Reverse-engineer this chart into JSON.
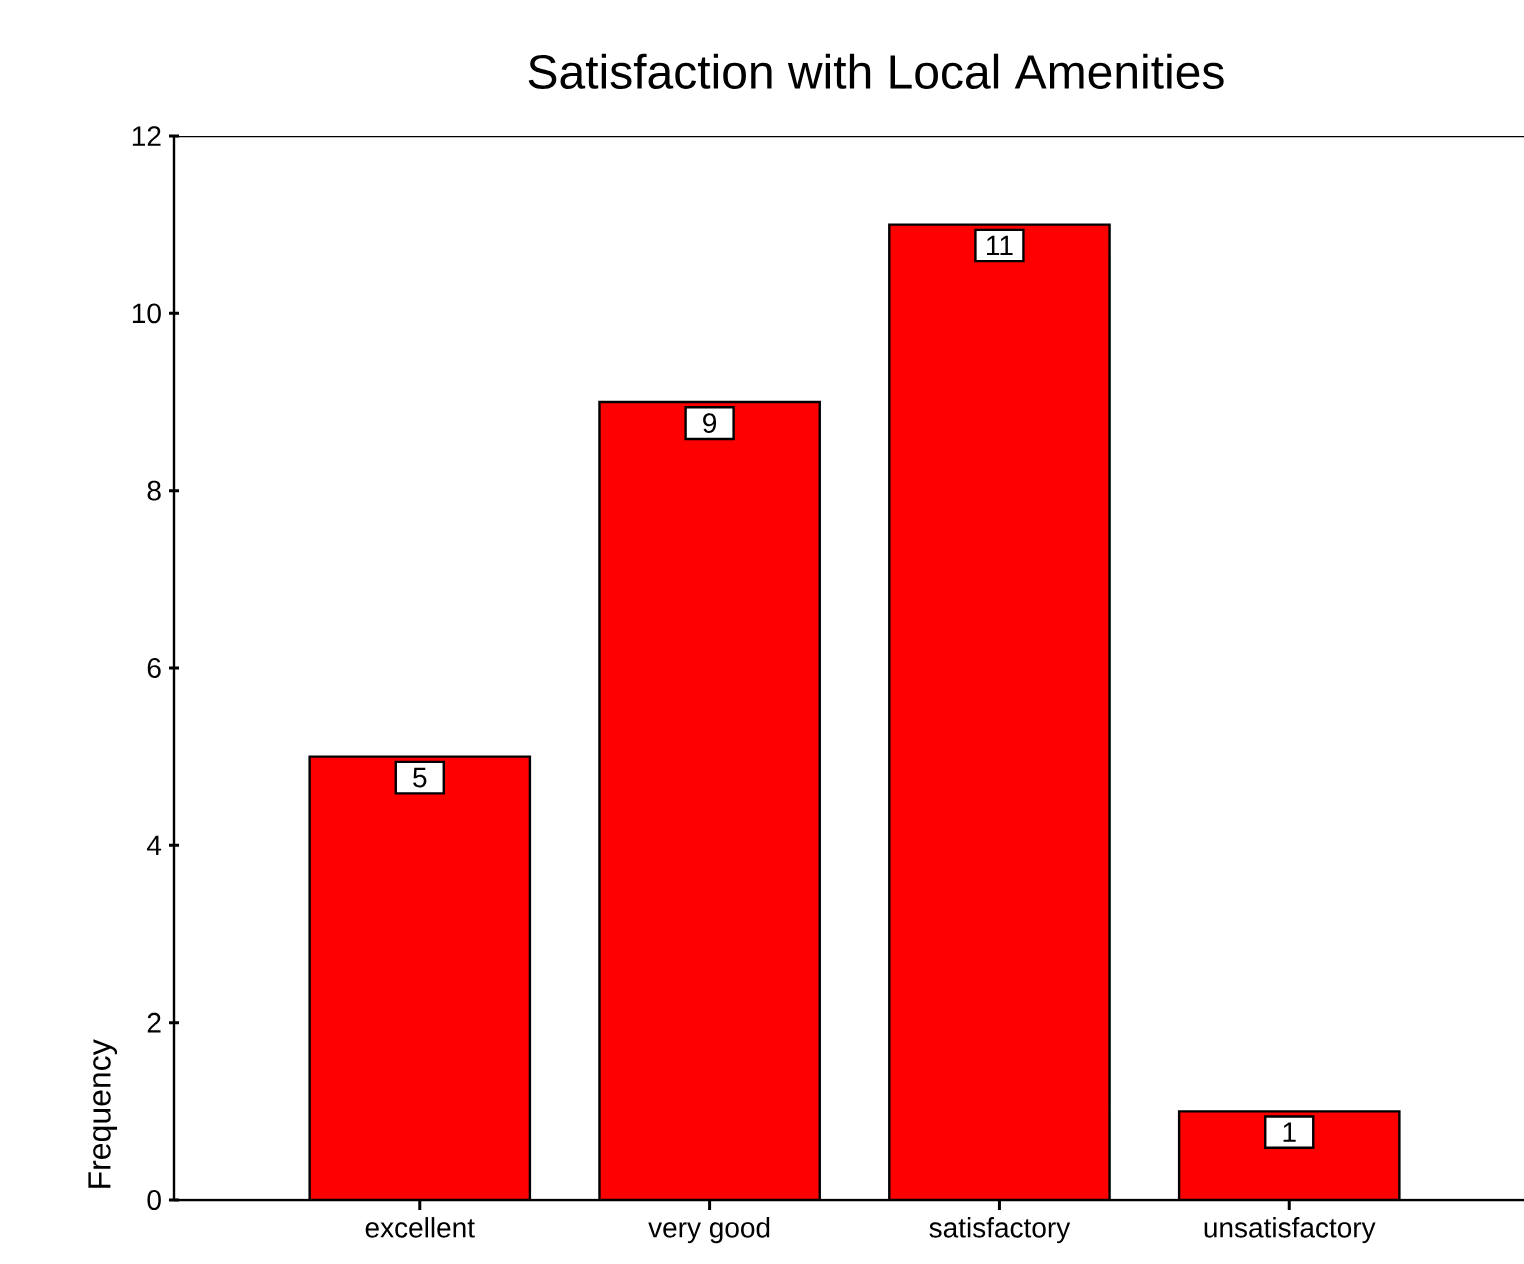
{
  "chart_data": {
    "type": "bar",
    "title": "Satisfaction with Local Amenities",
    "ylabel": "Frequency",
    "categories": [
      "excellent",
      "very good",
      "satisfactory",
      "unsatisfactory"
    ],
    "values": [
      5,
      9,
      11,
      1
    ],
    "color": "#ff0000",
    "ylim": [
      0,
      12
    ],
    "yticks": [
      0,
      2,
      4,
      6,
      8,
      10,
      12
    ],
    "data_labels": true
  }
}
